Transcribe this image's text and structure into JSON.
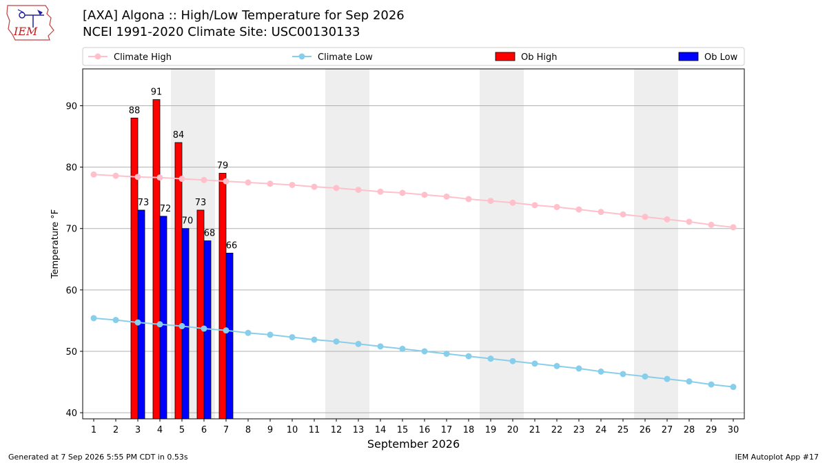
{
  "header": {
    "title_line1": "[AXA] Algona :: High/Low Temperature for Sep 2026",
    "title_line2": "NCEI 1991-2020 Climate Site: USC00130133",
    "logo_text": "IEM"
  },
  "footer": {
    "generated": "Generated at 7 Sep 2026 5:55 PM CDT in 0.53s",
    "app": "IEM Autoplot App #17"
  },
  "colors": {
    "climate_high": "#ffc0cb",
    "climate_low": "#87ceeb",
    "ob_high": "#ff0000",
    "ob_low": "#0000ff",
    "weekend_shade": "#eeeeee"
  },
  "chart_data": {
    "type": "bar",
    "xlabel": "September 2026",
    "ylabel": "Temperature °F",
    "xlim": [
      0.5,
      30.5
    ],
    "ylim": [
      39,
      96
    ],
    "y_ticks": [
      40,
      50,
      60,
      70,
      80,
      90
    ],
    "x_ticks": [
      1,
      2,
      3,
      4,
      5,
      6,
      7,
      8,
      9,
      10,
      11,
      12,
      13,
      14,
      15,
      16,
      17,
      18,
      19,
      20,
      21,
      22,
      23,
      24,
      25,
      26,
      27,
      28,
      29,
      30
    ],
    "grid": "horizontal",
    "legend_position": "top",
    "weekends": [
      [
        5,
        6
      ],
      [
        12,
        13
      ],
      [
        19,
        20
      ],
      [
        26,
        27
      ]
    ],
    "legend": [
      "Climate High",
      "Climate Low",
      "Ob High",
      "Ob Low"
    ],
    "series": [
      {
        "name": "Climate High",
        "kind": "line",
        "x": [
          1,
          2,
          3,
          4,
          5,
          6,
          7,
          8,
          9,
          10,
          11,
          12,
          13,
          14,
          15,
          16,
          17,
          18,
          19,
          20,
          21,
          22,
          23,
          24,
          25,
          26,
          27,
          28,
          29,
          30
        ],
        "values": [
          78.8,
          78.6,
          78.4,
          78.3,
          78.1,
          77.9,
          77.7,
          77.5,
          77.3,
          77.1,
          76.8,
          76.6,
          76.3,
          76.0,
          75.8,
          75.5,
          75.2,
          74.8,
          74.5,
          74.2,
          73.8,
          73.5,
          73.1,
          72.7,
          72.3,
          71.9,
          71.5,
          71.1,
          70.6,
          70.2
        ]
      },
      {
        "name": "Climate Low",
        "kind": "line",
        "x": [
          1,
          2,
          3,
          4,
          5,
          6,
          7,
          8,
          9,
          10,
          11,
          12,
          13,
          14,
          15,
          16,
          17,
          18,
          19,
          20,
          21,
          22,
          23,
          24,
          25,
          26,
          27,
          28,
          29,
          30
        ],
        "values": [
          55.4,
          55.1,
          54.7,
          54.4,
          54.1,
          53.7,
          53.4,
          53.0,
          52.7,
          52.3,
          51.9,
          51.6,
          51.2,
          50.8,
          50.4,
          50.0,
          49.6,
          49.2,
          48.8,
          48.4,
          48.0,
          47.6,
          47.2,
          46.7,
          46.3,
          45.9,
          45.5,
          45.1,
          44.6,
          44.2
        ]
      },
      {
        "name": "Ob High",
        "kind": "bar",
        "x": [
          3,
          4,
          5,
          6,
          7
        ],
        "values": [
          88,
          91,
          84,
          73,
          79
        ],
        "labels": [
          "88",
          "91",
          "84",
          "73",
          "79"
        ]
      },
      {
        "name": "Ob Low",
        "kind": "bar",
        "x": [
          3,
          4,
          5,
          6,
          7
        ],
        "values": [
          73,
          72,
          70,
          68,
          66
        ],
        "labels": [
          "73",
          "72",
          "70",
          "68",
          "66"
        ]
      }
    ]
  }
}
